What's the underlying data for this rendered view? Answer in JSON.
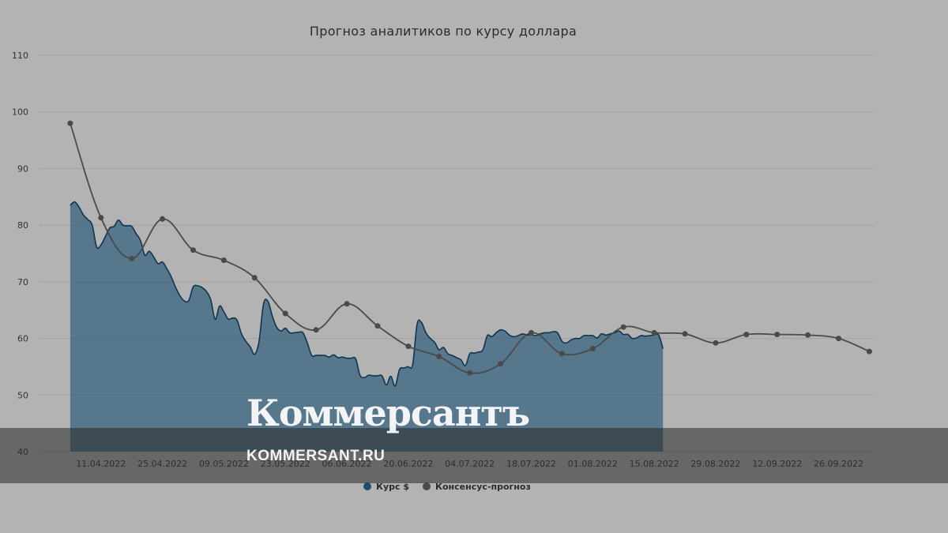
{
  "chart_data": {
    "type": "line",
    "title": "Прогноз аналитиков по курсу доллара",
    "xlabel": "",
    "ylabel": "",
    "ylim": [
      40,
      110
    ],
    "yticks": [
      40,
      50,
      60,
      70,
      80,
      90,
      100,
      110
    ],
    "x_range": [
      "2022-03-28",
      "2022-10-04"
    ],
    "xticks": [
      {
        "date": "2022-04-11",
        "label": "11.04.2022"
      },
      {
        "date": "2022-04-25",
        "label": "25.04.2022"
      },
      {
        "date": "2022-05-09",
        "label": "09.05.2022"
      },
      {
        "date": "2022-05-23",
        "label": "23.05.2022"
      },
      {
        "date": "2022-06-06",
        "label": "06.06.2022"
      },
      {
        "date": "2022-06-20",
        "label": "20.06.2022"
      },
      {
        "date": "2022-07-04",
        "label": "04.07.2022"
      },
      {
        "date": "2022-07-18",
        "label": "18.07.2022"
      },
      {
        "date": "2022-08-01",
        "label": "01.08.2022"
      },
      {
        "date": "2022-08-15",
        "label": "15.08.2022"
      },
      {
        "date": "2022-08-29",
        "label": "29.08.2022"
      },
      {
        "date": "2022-09-12",
        "label": "12.09.2022"
      },
      {
        "date": "2022-09-26",
        "label": "26.09.2022"
      }
    ],
    "grid": true,
    "legend_position": "bottom-center",
    "series": [
      {
        "name": "Курс $",
        "type": "area",
        "color": "#194f73",
        "points": [
          [
            "2022-04-04",
            83.5
          ],
          [
            "2022-04-05",
            84.1
          ],
          [
            "2022-04-06",
            83.2
          ],
          [
            "2022-04-07",
            81.8
          ],
          [
            "2022-04-08",
            81.0
          ],
          [
            "2022-04-09",
            80.0
          ],
          [
            "2022-04-10",
            76.2
          ],
          [
            "2022-04-11",
            76.5
          ],
          [
            "2022-04-12",
            78.0
          ],
          [
            "2022-04-13",
            79.5
          ],
          [
            "2022-04-14",
            79.8
          ],
          [
            "2022-04-15",
            80.9
          ],
          [
            "2022-04-16",
            80.0
          ],
          [
            "2022-04-17",
            79.9
          ],
          [
            "2022-04-18",
            79.8
          ],
          [
            "2022-04-19",
            78.5
          ],
          [
            "2022-04-20",
            77.3
          ],
          [
            "2022-04-21",
            74.7
          ],
          [
            "2022-04-22",
            75.4
          ],
          [
            "2022-04-23",
            74.4
          ],
          [
            "2022-04-24",
            73.2
          ],
          [
            "2022-04-25",
            73.5
          ],
          [
            "2022-04-26",
            72.3
          ],
          [
            "2022-04-27",
            70.9
          ],
          [
            "2022-04-28",
            69.0
          ],
          [
            "2022-04-29",
            67.5
          ],
          [
            "2022-04-30",
            66.6
          ],
          [
            "2022-05-01",
            66.7
          ],
          [
            "2022-05-02",
            69.1
          ],
          [
            "2022-05-03",
            69.3
          ],
          [
            "2022-05-04",
            69.0
          ],
          [
            "2022-05-05",
            68.3
          ],
          [
            "2022-05-06",
            66.8
          ],
          [
            "2022-05-07",
            63.4
          ],
          [
            "2022-05-08",
            65.7
          ],
          [
            "2022-05-09",
            64.7
          ],
          [
            "2022-05-10",
            63.4
          ],
          [
            "2022-05-11",
            63.6
          ],
          [
            "2022-05-12",
            63.2
          ],
          [
            "2022-05-13",
            60.8
          ],
          [
            "2022-05-14",
            59.5
          ],
          [
            "2022-05-15",
            58.5
          ],
          [
            "2022-05-16",
            57.2
          ],
          [
            "2022-05-17",
            59.5
          ],
          [
            "2022-05-18",
            66.0
          ],
          [
            "2022-05-19",
            66.6
          ],
          [
            "2022-05-20",
            64.0
          ],
          [
            "2022-05-21",
            62.0
          ],
          [
            "2022-05-22",
            61.3
          ],
          [
            "2022-05-23",
            61.8
          ],
          [
            "2022-05-24",
            61.0
          ],
          [
            "2022-05-25",
            61.0
          ],
          [
            "2022-05-26",
            61.1
          ],
          [
            "2022-05-27",
            61.0
          ],
          [
            "2022-05-28",
            59.2
          ],
          [
            "2022-05-29",
            57.0
          ],
          [
            "2022-05-30",
            57.0
          ],
          [
            "2022-05-31",
            57.0
          ],
          [
            "2022-06-01",
            57.0
          ],
          [
            "2022-06-02",
            56.7
          ],
          [
            "2022-06-03",
            57.1
          ],
          [
            "2022-06-04",
            56.6
          ],
          [
            "2022-06-05",
            56.7
          ],
          [
            "2022-06-06",
            56.5
          ],
          [
            "2022-06-07",
            56.5
          ],
          [
            "2022-06-08",
            56.4
          ],
          [
            "2022-06-09",
            53.5
          ],
          [
            "2022-06-10",
            53.1
          ],
          [
            "2022-06-11",
            53.5
          ],
          [
            "2022-06-12",
            53.4
          ],
          [
            "2022-06-13",
            53.4
          ],
          [
            "2022-06-14",
            53.4
          ],
          [
            "2022-06-15",
            51.8
          ],
          [
            "2022-06-16",
            53.3
          ],
          [
            "2022-06-17",
            51.6
          ],
          [
            "2022-06-18",
            54.5
          ],
          [
            "2022-06-19",
            54.8
          ],
          [
            "2022-06-20",
            55.0
          ],
          [
            "2022-06-21",
            55.4
          ],
          [
            "2022-06-22",
            62.5
          ],
          [
            "2022-06-23",
            62.8
          ],
          [
            "2022-06-24",
            61.0
          ],
          [
            "2022-06-25",
            60.0
          ],
          [
            "2022-06-26",
            59.3
          ],
          [
            "2022-06-27",
            58.0
          ],
          [
            "2022-06-28",
            58.4
          ],
          [
            "2022-06-29",
            57.3
          ],
          [
            "2022-06-30",
            57.0
          ],
          [
            "2022-07-01",
            56.6
          ],
          [
            "2022-07-02",
            56.2
          ],
          [
            "2022-07-03",
            55.2
          ],
          [
            "2022-07-04",
            57.3
          ],
          [
            "2022-07-05",
            57.4
          ],
          [
            "2022-07-06",
            57.6
          ],
          [
            "2022-07-07",
            58.0
          ],
          [
            "2022-07-08",
            60.5
          ],
          [
            "2022-07-09",
            60.3
          ],
          [
            "2022-07-10",
            61.0
          ],
          [
            "2022-07-11",
            61.5
          ],
          [
            "2022-07-12",
            61.3
          ],
          [
            "2022-07-13",
            60.6
          ],
          [
            "2022-07-14",
            60.3
          ],
          [
            "2022-07-15",
            60.5
          ],
          [
            "2022-07-16",
            60.8
          ],
          [
            "2022-07-17",
            60.6
          ],
          [
            "2022-07-18",
            60.7
          ],
          [
            "2022-07-19",
            60.5
          ],
          [
            "2022-07-20",
            60.8
          ],
          [
            "2022-07-21",
            61.0
          ],
          [
            "2022-07-22",
            61.0
          ],
          [
            "2022-07-23",
            61.2
          ],
          [
            "2022-07-24",
            61.0
          ],
          [
            "2022-07-25",
            59.5
          ],
          [
            "2022-07-26",
            59.2
          ],
          [
            "2022-07-27",
            59.7
          ],
          [
            "2022-07-28",
            60.0
          ],
          [
            "2022-07-29",
            60.0
          ],
          [
            "2022-07-30",
            60.5
          ],
          [
            "2022-07-31",
            60.5
          ],
          [
            "2022-08-01",
            60.5
          ],
          [
            "2022-08-02",
            60.1
          ],
          [
            "2022-08-03",
            60.8
          ],
          [
            "2022-08-04",
            60.6
          ],
          [
            "2022-08-05",
            60.8
          ],
          [
            "2022-08-06",
            61.0
          ],
          [
            "2022-08-07",
            61.3
          ],
          [
            "2022-08-08",
            60.7
          ],
          [
            "2022-08-09",
            60.7
          ],
          [
            "2022-08-10",
            60.0
          ],
          [
            "2022-08-11",
            60.1
          ],
          [
            "2022-08-12",
            60.5
          ],
          [
            "2022-08-13",
            60.4
          ],
          [
            "2022-08-14",
            60.5
          ],
          [
            "2022-08-15",
            60.6
          ],
          [
            "2022-08-16",
            60.6
          ],
          [
            "2022-08-17",
            58.2
          ]
        ]
      },
      {
        "name": "Консенсус-прогноз",
        "type": "spline",
        "color": "#4a4a4a",
        "points": [
          [
            "2022-04-04",
            98.0
          ],
          [
            "2022-04-11",
            81.3
          ],
          [
            "2022-04-18",
            74.1
          ],
          [
            "2022-04-25",
            81.1
          ],
          [
            "2022-05-02",
            75.6
          ],
          [
            "2022-05-09",
            73.8
          ],
          [
            "2022-05-16",
            70.7
          ],
          [
            "2022-05-23",
            64.4
          ],
          [
            "2022-05-30",
            61.5
          ],
          [
            "2022-06-06",
            66.1
          ],
          [
            "2022-06-13",
            62.2
          ],
          [
            "2022-06-20",
            58.6
          ],
          [
            "2022-06-27",
            56.8
          ],
          [
            "2022-07-04",
            53.9
          ],
          [
            "2022-07-11",
            55.5
          ],
          [
            "2022-07-18",
            61.0
          ],
          [
            "2022-07-25",
            57.3
          ],
          [
            "2022-08-01",
            58.2
          ],
          [
            "2022-08-08",
            62.0
          ],
          [
            "2022-08-15",
            61.0
          ],
          [
            "2022-08-22",
            60.8
          ],
          [
            "2022-08-29",
            59.2
          ],
          [
            "2022-09-05",
            60.7
          ],
          [
            "2022-09-12",
            60.7
          ],
          [
            "2022-09-19",
            60.6
          ],
          [
            "2022-09-26",
            60.0
          ],
          [
            "2022-10-03",
            57.7
          ]
        ]
      }
    ]
  },
  "watermark": {
    "logo": "Коммерсантъ",
    "url": "KOMMERSANT.RU"
  }
}
